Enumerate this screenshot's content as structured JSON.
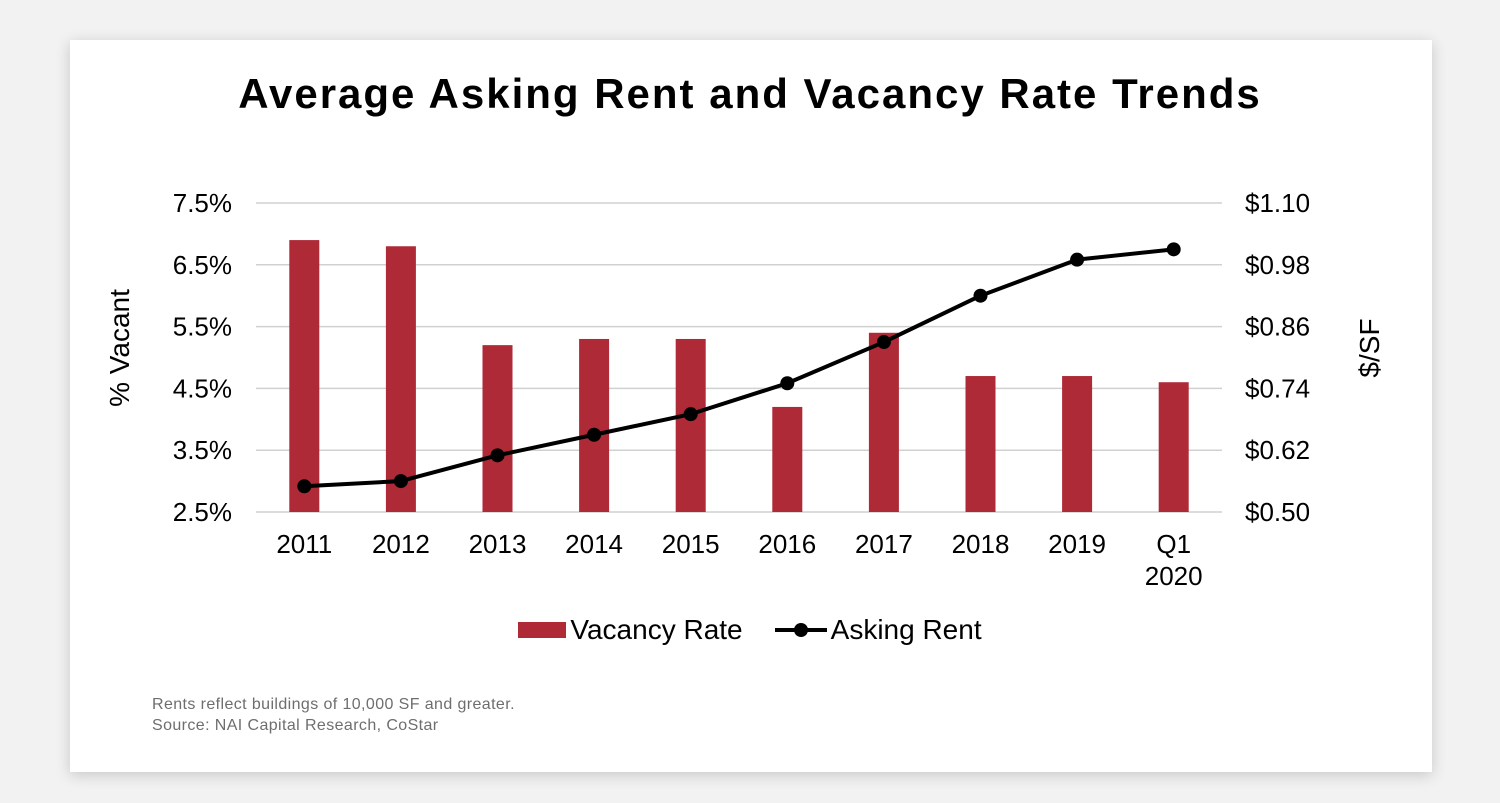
{
  "chart_data": {
    "type": "bar",
    "title": "Average Asking Rent and Vacancy Rate Trends",
    "categories": [
      "2011",
      "2012",
      "2013",
      "2014",
      "2015",
      "2016",
      "2017",
      "2018",
      "2019",
      "Q1 2020"
    ],
    "series": [
      {
        "name": "Vacancy Rate",
        "type": "bar",
        "axis": "left",
        "values": [
          6.9,
          6.8,
          5.2,
          5.3,
          5.3,
          4.2,
          5.4,
          4.7,
          4.7,
          4.6
        ],
        "color": "#ad2a36"
      },
      {
        "name": "Asking Rent",
        "type": "line",
        "axis": "right",
        "values": [
          0.55,
          0.56,
          0.61,
          0.65,
          0.69,
          0.75,
          0.83,
          0.92,
          0.99,
          1.01
        ],
        "color": "#000000"
      }
    ],
    "ylabel": "% Vacant",
    "ylabel_right": "$/SF",
    "ylim": [
      2.5,
      7.5
    ],
    "ylim_right": [
      0.5,
      1.1
    ],
    "yticks": [
      "7.5%",
      "6.5%",
      "5.5%",
      "4.5%",
      "3.5%",
      "2.5%"
    ],
    "yticks_right": [
      "$1.10",
      "$0.98",
      "$0.86",
      "$0.74",
      "$0.62",
      "$0.50"
    ],
    "xtick_labels": [
      [
        "2011"
      ],
      [
        "2012"
      ],
      [
        "2013"
      ],
      [
        "2014"
      ],
      [
        "2015"
      ],
      [
        "2016"
      ],
      [
        "2017"
      ],
      [
        "2018"
      ],
      [
        "2019"
      ],
      [
        "Q1",
        "2020"
      ]
    ],
    "grid": true,
    "legend_position": "bottom"
  },
  "footnote": {
    "line1": "Rents reflect buildings of 10,000 SF and greater.",
    "line2": "Source: NAI Capital Research, CoStar"
  }
}
